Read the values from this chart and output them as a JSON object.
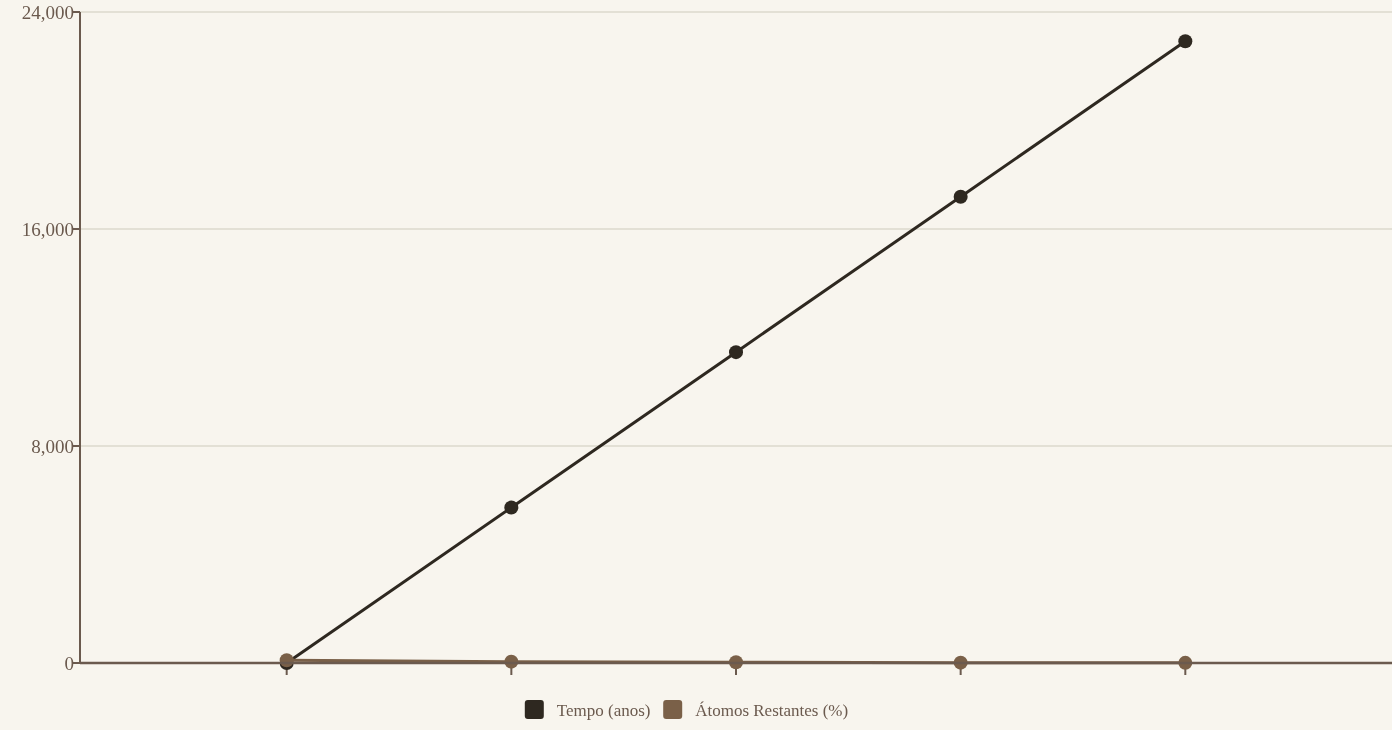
{
  "chart_data": {
    "type": "line",
    "categories": [
      null,
      null,
      null,
      null,
      null
    ],
    "series": [
      {
        "name": "Tempo (anos)",
        "color": "#2e2820",
        "values": [
          0,
          5730,
          11460,
          17190,
          22920
        ]
      },
      {
        "name": "Átomos Restantes (%)",
        "color": "#7a6048",
        "values": [
          100,
          50,
          25,
          12.5,
          6.25
        ]
      }
    ],
    "ylim": [
      0,
      24000
    ],
    "yticks": [
      {
        "value": 0,
        "label": "0"
      },
      {
        "value": 8000,
        "label": "8,000"
      },
      {
        "value": 16000,
        "label": "16,000"
      },
      {
        "value": 24000,
        "label": "24,000"
      }
    ],
    "grid": "y",
    "legend": "bottom",
    "marker": "circle",
    "line_style": "solid"
  }
}
